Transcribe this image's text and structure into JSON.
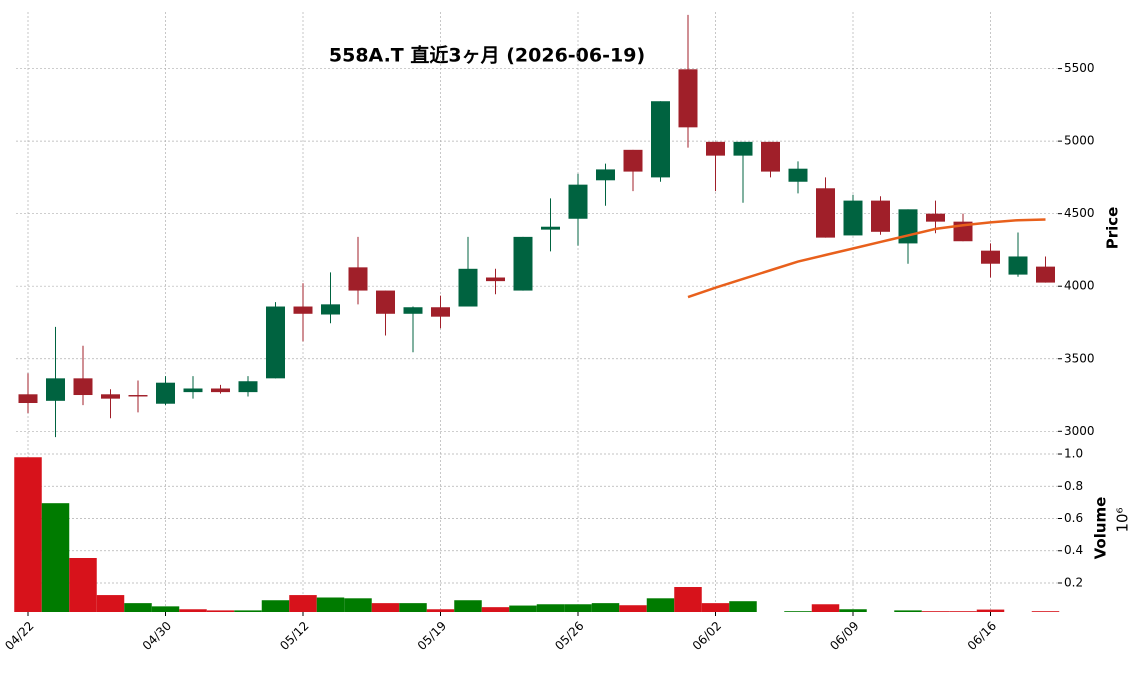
{
  "chart_data": {
    "type": "candlestick",
    "title": "558A.T 直近3ヶ月 (2026-06-19)",
    "categories": [
      "04/22",
      null,
      null,
      null,
      null,
      "04/30",
      null,
      null,
      null,
      null,
      "05/12",
      null,
      null,
      null,
      null,
      "05/19",
      null,
      null,
      null,
      null,
      "05/26",
      null,
      null,
      null,
      null,
      "06/02",
      null,
      null,
      null,
      null,
      "06/09",
      null,
      null,
      null,
      null,
      "06/16",
      null,
      null
    ],
    "open": [
      3255,
      3210,
      3365,
      3255,
      3250,
      3190,
      3270,
      3295,
      3270,
      3365,
      3860,
      3805,
      4130,
      3970,
      3810,
      3855,
      3860,
      4060,
      3970,
      4390,
      4465,
      4730,
      4940,
      4750,
      5495,
      4995,
      4900,
      4995,
      4720,
      4675,
      4350,
      4590,
      4295,
      4500,
      4445,
      4245,
      4080,
      4135
    ],
    "high": [
      3400,
      3720,
      3590,
      3290,
      3350,
      3380,
      3380,
      3320,
      3380,
      3890,
      4020,
      4095,
      4340,
      3970,
      3860,
      3935,
      4340,
      4120,
      4340,
      4605,
      4775,
      4845,
      4940,
      5275,
      5870,
      4995,
      4995,
      4995,
      4860,
      4750,
      4630,
      4620,
      4530,
      4590,
      4500,
      4295,
      4370,
      4205
    ],
    "low": [
      3125,
      2960,
      3180,
      3090,
      3130,
      3180,
      3225,
      3260,
      3240,
      3365,
      3620,
      3745,
      3875,
      3660,
      3545,
      3710,
      3860,
      3945,
      3970,
      4240,
      4280,
      4555,
      4655,
      4720,
      4955,
      4655,
      4575,
      4750,
      4640,
      4335,
      4350,
      4355,
      4155,
      4365,
      4310,
      4060,
      4065,
      4025
    ],
    "close": [
      3195,
      3365,
      3250,
      3225,
      3240,
      3335,
      3295,
      3270,
      3345,
      3860,
      3810,
      3875,
      3970,
      3810,
      3855,
      3790,
      4120,
      4035,
      4340,
      4410,
      4700,
      4805,
      4790,
      5275,
      5095,
      4900,
      4995,
      4790,
      4810,
      4335,
      4590,
      4375,
      4530,
      4445,
      4310,
      4155,
      4205,
      4025
    ],
    "up_color": "#006340",
    "down_color": "#a01f29",
    "ylim": [
      2940,
      5890
    ],
    "yticks": [
      3000,
      3500,
      4000,
      4500,
      5000,
      5500
    ],
    "ylabel": "Price",
    "grid": true,
    "line": {
      "color": "#e8601c",
      "values": [
        null,
        null,
        null,
        null,
        null,
        null,
        null,
        null,
        null,
        null,
        null,
        null,
        null,
        null,
        null,
        null,
        null,
        null,
        null,
        null,
        null,
        null,
        null,
        null,
        3925,
        3990,
        4050,
        4110,
        4170,
        4215,
        4260,
        4305,
        4350,
        4395,
        4420,
        4440,
        4455,
        4460
      ]
    },
    "volume": {
      "values": [
        0.98,
        0.695,
        0.355,
        0.125,
        0.075,
        0.055,
        0.037,
        0.03,
        0.03,
        0.093,
        0.125,
        0.11,
        0.105,
        0.075,
        0.075,
        0.037,
        0.093,
        0.05,
        0.06,
        0.068,
        0.068,
        0.075,
        0.062,
        0.105,
        0.175,
        0.075,
        0.087,
        0.02,
        0.025,
        0.068,
        0.037,
        0.02,
        0.03,
        0.025,
        0.025,
        0.035,
        0.02,
        0.025
      ],
      "colors": [
        "#d7121b",
        "#007b00",
        "#d7121b",
        "#d7121b",
        "#007b00",
        "#007b00",
        "#d7121b",
        "#d7121b",
        "#007b00",
        "#007b00",
        "#d7121b",
        "#007b00",
        "#007b00",
        "#d7121b",
        "#007b00",
        "#d7121b",
        "#007b00",
        "#d7121b",
        "#007b00",
        "#007b00",
        "#007b00",
        "#007b00",
        "#d7121b",
        "#007b00",
        "#d7121b",
        "#d7121b",
        "#007b00",
        "#d7121b",
        "#007b00",
        "#d7121b",
        "#007b00",
        "#d7121b",
        "#007b00",
        "#d7121b",
        "#d7121b",
        "#d7121b",
        "#007b00",
        "#d7121b"
      ],
      "ylim": [
        0.02,
        1.056
      ],
      "yticks": [
        0.2,
        0.4,
        0.6,
        0.8,
        {
          "value": 1,
          "label": "1.0"
        }
      ],
      "ylabel": "Volume",
      "offset_label": "10⁶"
    }
  }
}
